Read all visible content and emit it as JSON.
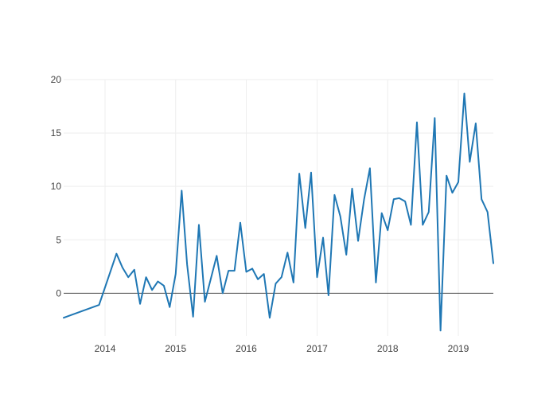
{
  "chart_data": {
    "type": "line",
    "title": "",
    "xlabel": "",
    "ylabel": "",
    "x_axis": {
      "type": "date",
      "range": [
        "2013-06-01",
        "2019-07-01"
      ],
      "ticks": [
        {
          "value": "2014-01-01",
          "label": "2014"
        },
        {
          "value": "2015-01-01",
          "label": "2015"
        },
        {
          "value": "2016-01-01",
          "label": "2016"
        },
        {
          "value": "2017-01-01",
          "label": "2017"
        },
        {
          "value": "2018-01-01",
          "label": "2018"
        },
        {
          "value": "2019-01-01",
          "label": "2019"
        }
      ],
      "grid": true
    },
    "y_axis": {
      "range": [
        -4,
        20
      ],
      "ticks": [
        0,
        5,
        10,
        15,
        20
      ],
      "tick_labels": [
        "0",
        "5",
        "10",
        "15",
        "20"
      ],
      "grid": true,
      "zeroline": true
    },
    "legend": "none",
    "series": [
      {
        "color": "#1f77b4",
        "points": [
          {
            "x": "2013-06-01",
            "y": -2.3
          },
          {
            "x": "2013-12-01",
            "y": -1.1
          },
          {
            "x": "2014-03-01",
            "y": 3.7
          },
          {
            "x": "2014-04-01",
            "y": 2.4
          },
          {
            "x": "2014-05-01",
            "y": 1.5
          },
          {
            "x": "2014-06-01",
            "y": 2.2
          },
          {
            "x": "2014-07-01",
            "y": -1.0
          },
          {
            "x": "2014-08-01",
            "y": 1.5
          },
          {
            "x": "2014-09-01",
            "y": 0.3
          },
          {
            "x": "2014-10-01",
            "y": 1.1
          },
          {
            "x": "2014-11-01",
            "y": 0.7
          },
          {
            "x": "2014-12-01",
            "y": -1.3
          },
          {
            "x": "2015-01-01",
            "y": 1.8
          },
          {
            "x": "2015-02-01",
            "y": 9.6
          },
          {
            "x": "2015-03-01",
            "y": 2.7
          },
          {
            "x": "2015-04-01",
            "y": -2.2
          },
          {
            "x": "2015-05-01",
            "y": 6.4
          },
          {
            "x": "2015-06-01",
            "y": -0.8
          },
          {
            "x": "2015-07-01",
            "y": 1.3
          },
          {
            "x": "2015-08-01",
            "y": 3.5
          },
          {
            "x": "2015-09-01",
            "y": 0.0
          },
          {
            "x": "2015-10-01",
            "y": 2.1
          },
          {
            "x": "2015-11-01",
            "y": 2.1
          },
          {
            "x": "2015-12-01",
            "y": 6.6
          },
          {
            "x": "2016-01-01",
            "y": 2.0
          },
          {
            "x": "2016-02-01",
            "y": 2.3
          },
          {
            "x": "2016-03-01",
            "y": 1.3
          },
          {
            "x": "2016-04-01",
            "y": 1.8
          },
          {
            "x": "2016-05-01",
            "y": -2.3
          },
          {
            "x": "2016-06-01",
            "y": 0.9
          },
          {
            "x": "2016-07-01",
            "y": 1.5
          },
          {
            "x": "2016-08-01",
            "y": 3.8
          },
          {
            "x": "2016-09-01",
            "y": 1.0
          },
          {
            "x": "2016-10-01",
            "y": 11.2
          },
          {
            "x": "2016-11-01",
            "y": 6.1
          },
          {
            "x": "2016-12-01",
            "y": 11.3
          },
          {
            "x": "2017-01-01",
            "y": 1.5
          },
          {
            "x": "2017-02-01",
            "y": 5.2
          },
          {
            "x": "2017-03-01",
            "y": -0.2
          },
          {
            "x": "2017-04-01",
            "y": 9.2
          },
          {
            "x": "2017-05-01",
            "y": 7.2
          },
          {
            "x": "2017-06-01",
            "y": 3.6
          },
          {
            "x": "2017-07-01",
            "y": 9.8
          },
          {
            "x": "2017-08-01",
            "y": 4.9
          },
          {
            "x": "2017-09-01",
            "y": 8.8
          },
          {
            "x": "2017-10-01",
            "y": 11.7
          },
          {
            "x": "2017-11-01",
            "y": 1.0
          },
          {
            "x": "2017-12-01",
            "y": 7.5
          },
          {
            "x": "2018-01-01",
            "y": 5.9
          },
          {
            "x": "2018-02-01",
            "y": 8.8
          },
          {
            "x": "2018-03-01",
            "y": 8.9
          },
          {
            "x": "2018-04-01",
            "y": 8.6
          },
          {
            "x": "2018-05-01",
            "y": 6.4
          },
          {
            "x": "2018-06-01",
            "y": 16.0
          },
          {
            "x": "2018-07-01",
            "y": 6.4
          },
          {
            "x": "2018-08-01",
            "y": 7.6
          },
          {
            "x": "2018-09-01",
            "y": 16.4
          },
          {
            "x": "2018-10-01",
            "y": -3.5
          },
          {
            "x": "2018-11-01",
            "y": 11.0
          },
          {
            "x": "2018-12-01",
            "y": 9.4
          },
          {
            "x": "2019-01-01",
            "y": 10.4
          },
          {
            "x": "2019-02-01",
            "y": 18.7
          },
          {
            "x": "2019-03-01",
            "y": 12.3
          },
          {
            "x": "2019-04-01",
            "y": 15.9
          },
          {
            "x": "2019-05-01",
            "y": 8.8
          },
          {
            "x": "2019-06-01",
            "y": 7.6
          },
          {
            "x": "2019-07-01",
            "y": 2.8
          }
        ]
      }
    ]
  }
}
